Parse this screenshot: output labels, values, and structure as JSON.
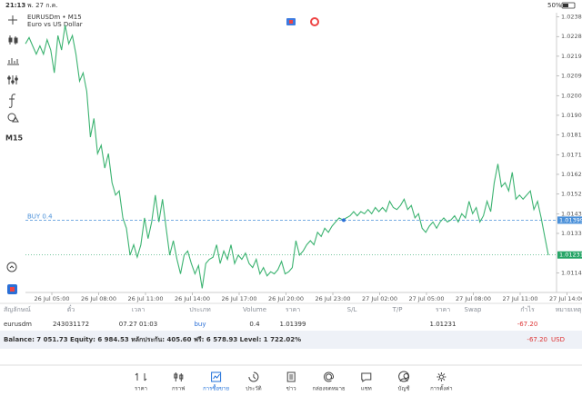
{
  "status_bar": {
    "time": "21:13",
    "date": "พ. 27 ก.ค.",
    "battery": "50%"
  },
  "toolbar": {
    "timeframe": "M15"
  },
  "chart_data": {
    "type": "line",
    "title": "EURUSDm • M15",
    "subtitle": "Euro vs US Dollar",
    "color": "#3cb371",
    "x_tick_labels": [
      "26 Jul 05:00",
      "26 Jul 08:00",
      "26 Jul 11:00",
      "26 Jul 14:00",
      "26 Jul 17:00",
      "26 Jul 20:00",
      "26 Jul 23:00",
      "27 Jul 02:00",
      "27 Jul 05:00",
      "27 Jul 08:00",
      "27 Jul 11:00",
      "27 Jul 14:00"
    ],
    "values": [
      1.0225,
      1.0228,
      1.0224,
      1.022,
      1.0224,
      1.022,
      1.0227,
      1.0222,
      1.0211,
      1.0229,
      1.0222,
      1.0234,
      1.0225,
      1.0229,
      1.022,
      1.0207,
      1.0211,
      1.0202,
      1.018,
      1.0189,
      1.0172,
      1.0176,
      1.0165,
      1.0172,
      1.0158,
      1.0152,
      1.0154,
      1.0141,
      1.0136,
      1.0123,
      1.0128,
      1.0122,
      1.0128,
      1.0141,
      1.0131,
      1.0139,
      1.0152,
      1.0139,
      1.015,
      1.0136,
      1.0123,
      1.013,
      1.0121,
      1.0114,
      1.0123,
      1.0125,
      1.0119,
      1.0114,
      1.0118,
      1.0107,
      1.0119,
      1.0121,
      1.0122,
      1.0128,
      1.0119,
      1.0125,
      1.0121,
      1.0128,
      1.0119,
      1.0123,
      1.0121,
      1.0124,
      1.0119,
      1.0117,
      1.0121,
      1.0114,
      1.0117,
      1.0113,
      1.0115,
      1.0114,
      1.0116,
      1.012,
      1.0114,
      1.0115,
      1.0117,
      1.013,
      1.0123,
      1.0125,
      1.0128,
      1.013,
      1.0128,
      1.0134,
      1.0132,
      1.0136,
      1.0134,
      1.0137,
      1.0139,
      1.0141,
      1.014,
      1.0141,
      1.0142,
      1.0144,
      1.0142,
      1.0144,
      1.0143,
      1.0145,
      1.0143,
      1.0146,
      1.0144,
      1.0146,
      1.0144,
      1.0149,
      1.0146,
      1.0145,
      1.0147,
      1.015,
      1.0145,
      1.0147,
      1.0141,
      1.0143,
      1.0136,
      1.0134,
      1.0137,
      1.0139,
      1.0136,
      1.0139,
      1.0141,
      1.0139,
      1.014,
      1.0142,
      1.0139,
      1.0143,
      1.0141,
      1.0149,
      1.0143,
      1.0146,
      1.0139,
      1.0142,
      1.0149,
      1.0144,
      1.0158,
      1.0167,
      1.0156,
      1.0158,
      1.0154,
      1.0163,
      1.015,
      1.0152,
      1.015,
      1.0152,
      1.0154,
      1.0145,
      1.0149,
      1.0141,
      1.0132,
      1.0123
    ],
    "ylim": [
      1.0105,
      1.024
    ],
    "yticks": [
      {
        "value": 1.0238,
        "label": "1.02380"
      },
      {
        "value": 1.02285,
        "label": "1.02285"
      },
      {
        "value": 1.0219,
        "label": "1.02190"
      },
      {
        "value": 1.02095,
        "label": "1.02095"
      },
      {
        "value": 1.02,
        "label": "1.02000"
      },
      {
        "value": 1.01905,
        "label": "1.01905"
      },
      {
        "value": 1.0181,
        "label": "1.01810"
      },
      {
        "value": 1.01715,
        "label": "1.01715"
      },
      {
        "value": 1.0162,
        "label": "1.01620"
      },
      {
        "value": 1.01525,
        "label": "1.01525"
      },
      {
        "value": 1.0143,
        "label": "1.01430"
      },
      {
        "value": 1.01335,
        "label": "1.01335"
      },
      {
        "value": 1.01145,
        "label": "1.01145"
      }
    ],
    "price_lines": [
      {
        "label": "BUY 0.4",
        "value": 1.01399,
        "color": "#4a90d9"
      },
      {
        "value": 1.01231,
        "color": "#27a567"
      }
    ]
  },
  "positions": {
    "columns": [
      "สัญลักษณ์",
      "ตั๋ว",
      "เวลา",
      "ประเภท",
      "Volume",
      "ราคา",
      "S/L",
      "T/P",
      "ราคา",
      "Swap",
      "กำไร",
      "หมายเหตุ"
    ],
    "rows": [
      {
        "symbol": "eurusdm",
        "ticket": "243031172",
        "time": "07.27 01:03",
        "type": "buy",
        "volume": "0.4",
        "price": "1.01399",
        "current_price": "1.01231",
        "profit": "-67.20"
      }
    ]
  },
  "account": {
    "summary": "Balance: 7 051.73 Equity: 6 984.53 หลักประกัน: 405.60 ฟรี: 6 578.93 Level: 1 722.02%",
    "profit": "-67.20",
    "currency": "USD"
  },
  "nav": {
    "items": [
      "ราคา",
      "กราฟ",
      "การซื้อขาย",
      "ประวัติ",
      "ข่าว",
      "กล่องจดหมาย",
      "แชท",
      "บัญชี",
      "การตั้งค่า"
    ],
    "active": 2
  }
}
